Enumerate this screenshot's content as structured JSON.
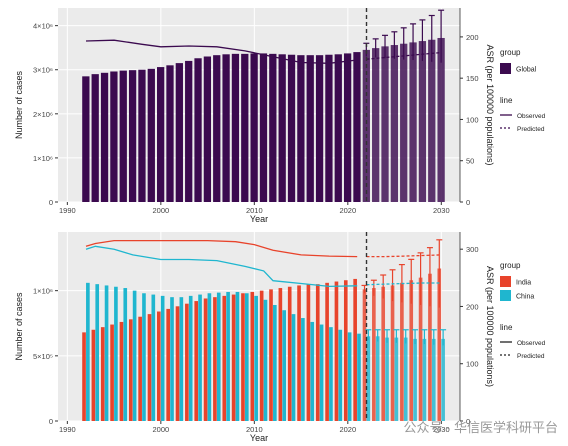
{
  "chart_data": [
    {
      "type": "bar",
      "xlabel": "Year",
      "ylabel": "Number of cases",
      "y2label": "ASR (per 100000 populations)",
      "xlim": [
        1989,
        2032
      ],
      "ylim": [
        0,
        4400000.0
      ],
      "y2lim": [
        0,
        235
      ],
      "x_ticks": [
        1990,
        2000,
        2010,
        2020,
        2030
      ],
      "x_tick_labels": [
        "1990",
        "2000",
        "2010",
        "2020",
        "2030"
      ],
      "y_ticks": [
        0,
        1000000,
        2000000,
        3000000,
        4000000
      ],
      "y_tick_labels": [
        "0",
        "1×10⁶",
        "2×10⁶",
        "3×10⁶",
        "4×10⁶"
      ],
      "y2_ticks": [
        0,
        50,
        100,
        150,
        200
      ],
      "y2_tick_labels": [
        "0",
        "50",
        "100",
        "150",
        "200"
      ],
      "prediction_start": 2022,
      "x": [
        1992,
        1993,
        1994,
        1995,
        1996,
        1997,
        1998,
        1999,
        2000,
        2001,
        2002,
        2003,
        2004,
        2005,
        2006,
        2007,
        2008,
        2009,
        2010,
        2011,
        2012,
        2013,
        2014,
        2015,
        2016,
        2017,
        2018,
        2019,
        2020,
        2021,
        2022,
        2023,
        2024,
        2025,
        2026,
        2027,
        2028,
        2029,
        2030
      ],
      "bar_series": [
        {
          "name": "Global",
          "color": "#3b0a4f",
          "values": [
            2850000,
            2900000,
            2930000,
            2960000,
            2980000,
            2990000,
            3000000,
            3020000,
            3060000,
            3100000,
            3150000,
            3200000,
            3260000,
            3300000,
            3330000,
            3350000,
            3360000,
            3360000,
            3370000,
            3370000,
            3360000,
            3350000,
            3340000,
            3330000,
            3330000,
            3330000,
            3340000,
            3350000,
            3370000,
            3400000,
            3450000,
            3490000,
            3530000,
            3560000,
            3590000,
            3620000,
            3650000,
            3680000,
            3720000
          ],
          "upper": [
            null,
            null,
            null,
            null,
            null,
            null,
            null,
            null,
            null,
            null,
            null,
            null,
            null,
            null,
            null,
            null,
            null,
            null,
            null,
            null,
            null,
            null,
            null,
            null,
            null,
            null,
            null,
            null,
            null,
            null,
            3600000,
            3700000,
            3780000,
            3860000,
            3950000,
            4040000,
            4130000,
            4230000,
            4350000
          ],
          "lower": [
            null,
            null,
            null,
            null,
            null,
            null,
            null,
            null,
            null,
            null,
            null,
            null,
            null,
            null,
            null,
            null,
            null,
            null,
            null,
            null,
            null,
            null,
            null,
            null,
            null,
            null,
            null,
            null,
            null,
            null,
            3300000,
            3280000,
            3260000,
            3250000,
            3230000,
            3220000,
            3200000,
            3180000,
            3160000
          ]
        }
      ],
      "line_series": [
        {
          "name": "Global",
          "color": "#3b0a4f",
          "observed_x": [
            1992,
            1995,
            1998,
            2000,
            2003,
            2006,
            2009,
            2012,
            2015,
            2018,
            2021
          ],
          "observed": [
            195,
            196,
            191,
            188,
            189,
            188,
            183,
            176,
            169,
            168,
            172
          ],
          "predicted_x": [
            2022,
            2024,
            2026,
            2028,
            2030
          ],
          "predicted": [
            173,
            175,
            177,
            179,
            181
          ]
        }
      ],
      "legend": {
        "group_title": "group",
        "group_items": [
          "Global"
        ],
        "line_title": "line",
        "line_items": [
          "Observed",
          "Predicted"
        ]
      }
    },
    {
      "type": "bar",
      "xlabel": "Year",
      "ylabel": "Number of cases",
      "y2label": "ASR (per 100000 populations)",
      "xlim": [
        1989,
        2032
      ],
      "ylim": [
        0,
        1450000.0
      ],
      "y2lim": [
        0,
        330
      ],
      "x_ticks": [
        1990,
        2000,
        2010,
        2020,
        2030
      ],
      "x_tick_labels": [
        "1990",
        "2000",
        "2010",
        "2020",
        "2030"
      ],
      "y_ticks": [
        0,
        500000,
        1000000
      ],
      "y_tick_labels": [
        "0",
        "5×10⁵",
        "1×10⁶"
      ],
      "y2_ticks": [
        0,
        100,
        200,
        300
      ],
      "y2_tick_labels": [
        "0",
        "100",
        "200",
        "300"
      ],
      "prediction_start": 2022,
      "x": [
        1992,
        1993,
        1994,
        1995,
        1996,
        1997,
        1998,
        1999,
        2000,
        2001,
        2002,
        2003,
        2004,
        2005,
        2006,
        2007,
        2008,
        2009,
        2010,
        2011,
        2012,
        2013,
        2014,
        2015,
        2016,
        2017,
        2018,
        2019,
        2020,
        2021,
        2022,
        2023,
        2024,
        2025,
        2026,
        2027,
        2028,
        2029,
        2030
      ],
      "bar_series": [
        {
          "name": "India",
          "color": "#e8432b",
          "values": [
            680000,
            700000,
            720000,
            740000,
            760000,
            780000,
            800000,
            820000,
            840000,
            860000,
            880000,
            900000,
            920000,
            940000,
            950000,
            960000,
            970000,
            980000,
            990000,
            1000000,
            1010000,
            1020000,
            1030000,
            1040000,
            1050000,
            1050000,
            1060000,
            1070000,
            1080000,
            1090000,
            1010000,
            1020000,
            1030000,
            1040000,
            1060000,
            1080000,
            1100000,
            1130000,
            1170000
          ],
          "upper": [
            null,
            null,
            null,
            null,
            null,
            null,
            null,
            null,
            null,
            null,
            null,
            null,
            null,
            null,
            null,
            null,
            null,
            null,
            null,
            null,
            null,
            null,
            null,
            null,
            null,
            null,
            null,
            null,
            null,
            null,
            1040000,
            1080000,
            1120000,
            1160000,
            1200000,
            1240000,
            1290000,
            1330000,
            1390000
          ],
          "lower": [
            null,
            null,
            null,
            null,
            null,
            null,
            null,
            null,
            null,
            null,
            null,
            null,
            null,
            null,
            null,
            null,
            null,
            null,
            null,
            null,
            null,
            null,
            null,
            null,
            null,
            null,
            null,
            null,
            null,
            null,
            980000,
            960000,
            940000,
            920000,
            910000,
            900000,
            890000,
            880000,
            870000
          ]
        },
        {
          "name": "China",
          "color": "#1fb6cf",
          "values": [
            1060000,
            1050000,
            1040000,
            1030000,
            1020000,
            1000000,
            980000,
            970000,
            960000,
            950000,
            950000,
            960000,
            970000,
            980000,
            985000,
            990000,
            990000,
            980000,
            960000,
            930000,
            890000,
            850000,
            820000,
            790000,
            760000,
            740000,
            720000,
            700000,
            680000,
            670000,
            650000,
            650000,
            640000,
            640000,
            640000,
            630000,
            630000,
            630000,
            630000
          ],
          "upper": [
            null,
            null,
            null,
            null,
            null,
            null,
            null,
            null,
            null,
            null,
            null,
            null,
            null,
            null,
            null,
            null,
            null,
            null,
            null,
            null,
            null,
            null,
            null,
            null,
            null,
            null,
            null,
            null,
            null,
            null,
            700000,
            700000,
            700000,
            700000,
            700000,
            700000,
            700000,
            700000,
            700000
          ],
          "lower": [
            null,
            null,
            null,
            null,
            null,
            null,
            null,
            null,
            null,
            null,
            null,
            null,
            null,
            null,
            null,
            null,
            null,
            null,
            null,
            null,
            null,
            null,
            null,
            null,
            null,
            null,
            null,
            null,
            null,
            null,
            620000,
            610000,
            600000,
            600000,
            595000,
            590000,
            590000,
            585000,
            580000
          ]
        }
      ],
      "line_series": [
        {
          "name": "India",
          "color": "#e8432b",
          "observed_x": [
            1992,
            1993,
            1995,
            2000,
            2005,
            2008,
            2010,
            2012,
            2015,
            2018,
            2021
          ],
          "observed": [
            305,
            310,
            315,
            315,
            315,
            313,
            308,
            298,
            290,
            288,
            287
          ],
          "predicted_x": [
            2022,
            2024,
            2026,
            2028,
            2030
          ],
          "predicted": [
            287,
            287,
            288,
            289,
            290
          ]
        },
        {
          "name": "China",
          "color": "#1fb6cf",
          "observed_x": [
            1992,
            1993,
            1995,
            1997,
            2000,
            2003,
            2006,
            2009,
            2011,
            2012,
            2015,
            2018,
            2021
          ],
          "observed": [
            300,
            305,
            300,
            290,
            282,
            282,
            280,
            270,
            262,
            245,
            240,
            235,
            236
          ],
          "predicted_x": [
            2022,
            2024,
            2026,
            2028,
            2030
          ],
          "predicted": [
            238,
            239,
            240,
            241,
            241
          ]
        }
      ],
      "legend": {
        "group_title": "group",
        "group_items": [
          "India",
          "China"
        ],
        "line_title": "line",
        "line_items": [
          "Observed",
          "Predicted"
        ]
      }
    }
  ],
  "watermark": "公众号 · 华信医学科研平台"
}
